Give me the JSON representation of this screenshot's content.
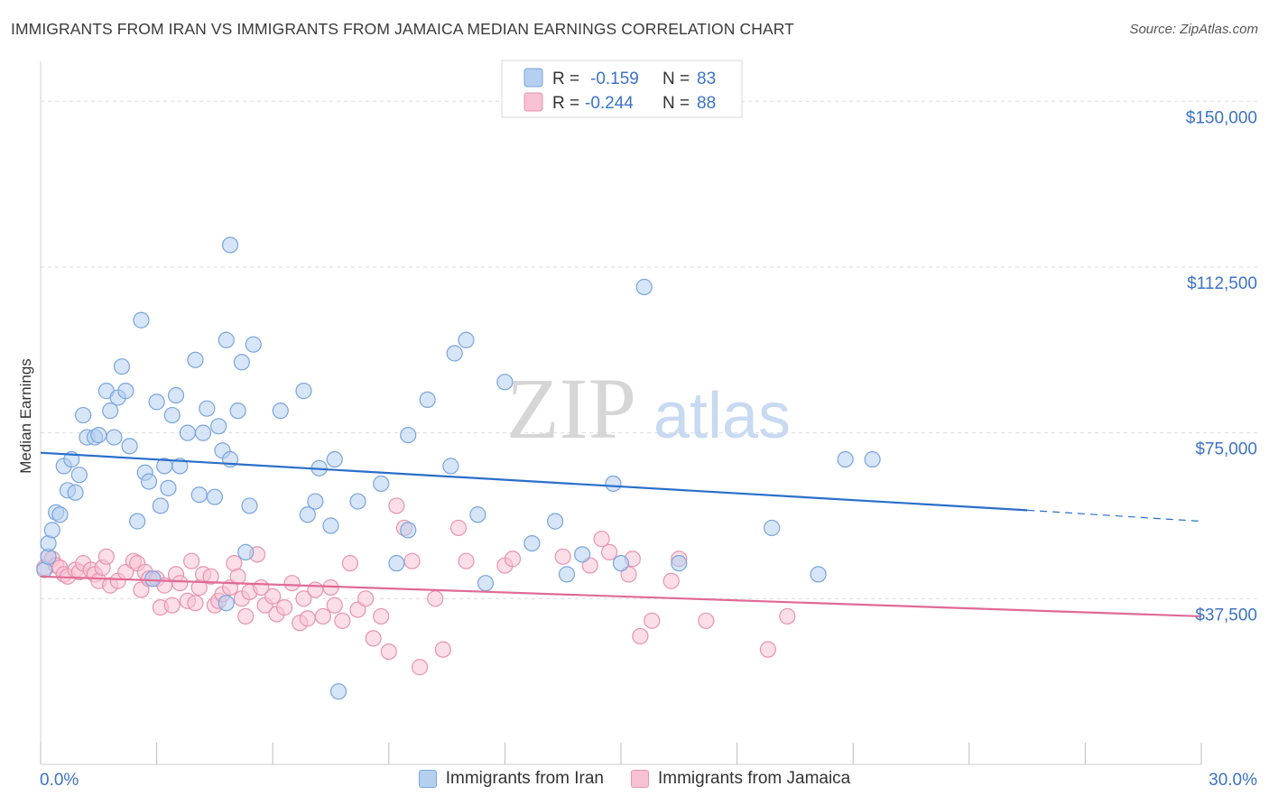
{
  "header": {
    "title": "IMMIGRANTS FROM IRAN VS IMMIGRANTS FROM JAMAICA MEDIAN EARNINGS CORRELATION CHART",
    "source": "Source: ZipAtlas.com"
  },
  "watermark": {
    "part1": "ZIP",
    "part2": "atlas"
  },
  "colors": {
    "iran_fill": "#b4cff0",
    "iran_stroke": "#7aa5dc",
    "iran_line": "#2a6fca",
    "jamaica_fill": "#f7c2d3",
    "jamaica_stroke": "#e893b0",
    "jamaica_line": "#e06a95",
    "tick_label": "#3c73c8",
    "grid": "#dcdcdc"
  },
  "legend_top": [
    {
      "r_label": "R =",
      "r_value": "-0.159",
      "n_label": "N =",
      "n_value": "83"
    },
    {
      "r_label": "R =",
      "r_value": "-0.244",
      "n_label": "N =",
      "n_value": "88"
    }
  ],
  "chart_data": {
    "type": "scatter",
    "title": "IMMIGRANTS FROM IRAN VS IMMIGRANTS FROM JAMAICA MEDIAN EARNINGS CORRELATION CHART",
    "xlabel": "",
    "ylabel": "Median Earnings",
    "xlim": [
      0,
      30
    ],
    "ylim": [
      0,
      157000
    ],
    "x_tick_labels": [
      "0.0%",
      "30.0%"
    ],
    "y_ticks": [
      37500,
      75000,
      112500,
      150000
    ],
    "y_tick_labels": [
      "$37,500",
      "$75,000",
      "$112,500",
      "$150,000"
    ],
    "grid": true,
    "legend_position": "top-center",
    "series": [
      {
        "name": "Immigrants from Iran",
        "r": -0.159,
        "n": 83,
        "trend": {
          "x0": 0,
          "y0": 70500,
          "x1": 25.5,
          "y1": 57500,
          "dash_to_x": 30,
          "dash_to_y": 55000
        },
        "points": [
          [
            0.1,
            44000
          ],
          [
            0.2,
            47000
          ],
          [
            0.2,
            50000
          ],
          [
            0.3,
            53000
          ],
          [
            0.4,
            57000
          ],
          [
            0.5,
            56500
          ],
          [
            0.6,
            67500
          ],
          [
            0.7,
            62000
          ],
          [
            0.8,
            69000
          ],
          [
            0.9,
            61500
          ],
          [
            1.0,
            65500
          ],
          [
            1.1,
            79000
          ],
          [
            1.2,
            74000
          ],
          [
            1.4,
            74000
          ],
          [
            1.5,
            74500
          ],
          [
            1.7,
            84500
          ],
          [
            1.8,
            80000
          ],
          [
            1.9,
            74000
          ],
          [
            2.0,
            83000
          ],
          [
            2.1,
            90000
          ],
          [
            2.2,
            84500
          ],
          [
            2.3,
            72000
          ],
          [
            2.5,
            55000
          ],
          [
            2.6,
            100500
          ],
          [
            2.7,
            66000
          ],
          [
            2.8,
            64000
          ],
          [
            2.9,
            42000
          ],
          [
            3.0,
            82000
          ],
          [
            3.1,
            58500
          ],
          [
            3.2,
            67500
          ],
          [
            3.3,
            62500
          ],
          [
            3.4,
            79000
          ],
          [
            3.5,
            83500
          ],
          [
            3.6,
            67500
          ],
          [
            3.8,
            75000
          ],
          [
            4.0,
            91500
          ],
          [
            4.1,
            61000
          ],
          [
            4.2,
            75000
          ],
          [
            4.3,
            80500
          ],
          [
            4.5,
            60500
          ],
          [
            4.6,
            76500
          ],
          [
            4.7,
            71000
          ],
          [
            4.8,
            96000
          ],
          [
            4.9,
            69000
          ],
          [
            5.1,
            80000
          ],
          [
            5.2,
            91000
          ],
          [
            5.3,
            48000
          ],
          [
            5.4,
            58500
          ],
          [
            5.5,
            95000
          ],
          [
            6.2,
            80000
          ],
          [
            6.8,
            84500
          ],
          [
            6.9,
            56500
          ],
          [
            7.1,
            59500
          ],
          [
            7.2,
            67000
          ],
          [
            7.5,
            54000
          ],
          [
            7.6,
            69000
          ],
          [
            8.2,
            59500
          ],
          [
            8.8,
            63500
          ],
          [
            9.2,
            45500
          ],
          [
            9.5,
            53000
          ],
          [
            9.5,
            74500
          ],
          [
            10.0,
            82500
          ],
          [
            10.6,
            67500
          ],
          [
            10.7,
            93000
          ],
          [
            11.0,
            96000
          ],
          [
            11.3,
            56500
          ],
          [
            11.5,
            41000
          ],
          [
            12.0,
            86500
          ],
          [
            12.7,
            50000
          ],
          [
            13.3,
            55000
          ],
          [
            13.6,
            43000
          ],
          [
            14.0,
            47500
          ],
          [
            14.8,
            63500
          ],
          [
            15.0,
            45500
          ],
          [
            15.6,
            108000
          ],
          [
            16.5,
            45500
          ],
          [
            18.9,
            53500
          ],
          [
            20.1,
            43000
          ],
          [
            20.8,
            69000
          ],
          [
            21.5,
            69000
          ],
          [
            4.8,
            36500
          ],
          [
            7.7,
            16500
          ],
          [
            4.9,
            117500
          ]
        ]
      },
      {
        "name": "Immigrants from Jamaica",
        "r": -0.244,
        "n": 88,
        "trend": {
          "x0": 0,
          "y0": 42500,
          "x1": 30,
          "y1": 33500
        },
        "points": [
          [
            0.1,
            44500
          ],
          [
            0.2,
            47000
          ],
          [
            0.3,
            46500
          ],
          [
            0.4,
            45000
          ],
          [
            0.5,
            44500
          ],
          [
            0.6,
            43000
          ],
          [
            0.7,
            42500
          ],
          [
            0.9,
            44000
          ],
          [
            1.0,
            43500
          ],
          [
            1.1,
            45500
          ],
          [
            1.3,
            44000
          ],
          [
            1.4,
            43000
          ],
          [
            1.5,
            41500
          ],
          [
            1.6,
            44500
          ],
          [
            1.7,
            47000
          ],
          [
            1.8,
            40500
          ],
          [
            2.0,
            41500
          ],
          [
            2.2,
            43500
          ],
          [
            2.4,
            46000
          ],
          [
            2.5,
            45500
          ],
          [
            2.6,
            39500
          ],
          [
            2.7,
            43500
          ],
          [
            2.8,
            42000
          ],
          [
            3.0,
            42000
          ],
          [
            3.1,
            35500
          ],
          [
            3.2,
            40500
          ],
          [
            3.4,
            36000
          ],
          [
            3.5,
            43000
          ],
          [
            3.6,
            41000
          ],
          [
            3.8,
            37000
          ],
          [
            3.9,
            46000
          ],
          [
            4.0,
            36500
          ],
          [
            4.1,
            40000
          ],
          [
            4.2,
            43000
          ],
          [
            4.4,
            42500
          ],
          [
            4.5,
            36000
          ],
          [
            4.6,
            37000
          ],
          [
            4.7,
            38500
          ],
          [
            4.9,
            40000
          ],
          [
            5.0,
            45500
          ],
          [
            5.1,
            42500
          ],
          [
            5.2,
            37500
          ],
          [
            5.3,
            33500
          ],
          [
            5.4,
            39000
          ],
          [
            5.6,
            47500
          ],
          [
            5.7,
            40000
          ],
          [
            5.8,
            36000
          ],
          [
            6.0,
            38000
          ],
          [
            6.1,
            34000
          ],
          [
            6.3,
            35500
          ],
          [
            6.5,
            41000
          ],
          [
            6.7,
            32000
          ],
          [
            6.8,
            37500
          ],
          [
            6.9,
            33000
          ],
          [
            7.1,
            39500
          ],
          [
            7.3,
            33500
          ],
          [
            7.5,
            40000
          ],
          [
            7.6,
            36000
          ],
          [
            7.8,
            32500
          ],
          [
            8.0,
            45500
          ],
          [
            8.2,
            35000
          ],
          [
            8.4,
            37500
          ],
          [
            8.6,
            28500
          ],
          [
            8.8,
            33500
          ],
          [
            9.0,
            25500
          ],
          [
            9.2,
            58500
          ],
          [
            9.4,
            53500
          ],
          [
            9.6,
            46000
          ],
          [
            9.8,
            22000
          ],
          [
            10.2,
            37500
          ],
          [
            10.4,
            26000
          ],
          [
            10.8,
            53500
          ],
          [
            11.0,
            46000
          ],
          [
            12.0,
            45000
          ],
          [
            12.2,
            46500
          ],
          [
            13.5,
            47000
          ],
          [
            14.2,
            45000
          ],
          [
            14.5,
            51000
          ],
          [
            14.7,
            48000
          ],
          [
            15.2,
            43000
          ],
          [
            15.3,
            46500
          ],
          [
            15.5,
            29000
          ],
          [
            15.8,
            32500
          ],
          [
            16.3,
            41500
          ],
          [
            16.5,
            46500
          ],
          [
            17.2,
            32500
          ],
          [
            18.8,
            26000
          ],
          [
            19.3,
            33500
          ]
        ]
      }
    ]
  },
  "legend_bottom": [
    {
      "label": "Immigrants from Iran"
    },
    {
      "label": "Immigrants from Jamaica"
    }
  ]
}
